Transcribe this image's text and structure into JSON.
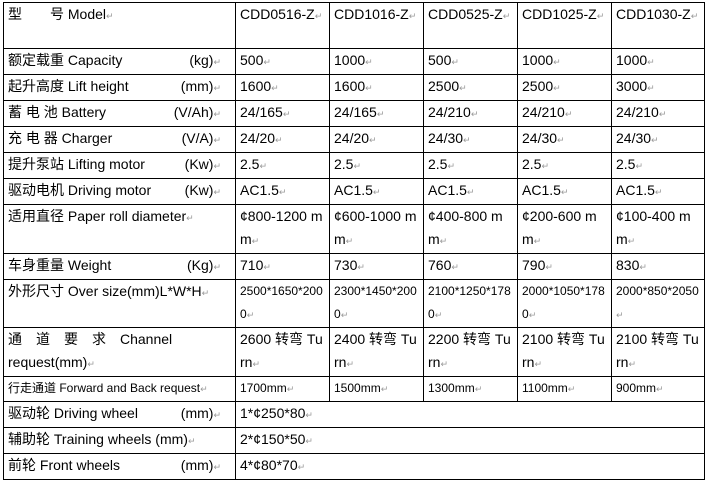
{
  "header": {
    "label": "型　　号 Model",
    "models": [
      "CDD0516-Z",
      "CDD1016-Z",
      "CDD0525-Z",
      "CDD1025-Z",
      "CDD1030-Z"
    ]
  },
  "rows": [
    {
      "name": "额定载重 Capacity",
      "unit": "(kg)",
      "values": [
        "500",
        "1000",
        "500",
        "1000",
        "1000"
      ]
    },
    {
      "name": "起升高度 Lift height",
      "unit": "(mm)",
      "values": [
        "1600",
        "1600",
        "2500",
        "2500",
        "3000"
      ]
    },
    {
      "name": "蓄 电 池 Battery",
      "unit": "(V/Ah)",
      "values": [
        "24/165",
        "24/165",
        "24/210",
        "24/210",
        "24/210"
      ]
    },
    {
      "name": "充 电 器 Charger",
      "unit": "(V/A)",
      "values": [
        "24/20",
        "24/20",
        "24/30",
        "24/30",
        "24/30"
      ]
    },
    {
      "name": "提升泵站 Lifting motor",
      "unit": "(Kw)",
      "values": [
        "2.5",
        "2.5",
        "2.5",
        "2.5",
        "2.5"
      ]
    },
    {
      "name": "驱动电机 Driving motor",
      "unit": "(Kw)",
      "values": [
        "AC1.5",
        "AC1.5",
        "AC1.5",
        "AC1.5",
        "AC1.5"
      ]
    },
    {
      "name": "适用直径 Paper roll diameter",
      "unit": "",
      "values": [
        "¢800-1200 mm",
        "¢600-1000 mm",
        "¢400-800 mm",
        "¢200-600 mm",
        "¢100-400 mm"
      ]
    },
    {
      "name": "车身重量 Weight",
      "unit": "(Kg)",
      "values": [
        "710",
        "730",
        "760",
        "790",
        "830"
      ]
    },
    {
      "name": "外形尺寸 Over size(mm)L*W*H",
      "unit": "",
      "values": [
        "2500*1650*2000",
        "2300*1450*2000",
        "2100*1250*1780",
        "2000*1050*1780",
        "2000*850*2050"
      ]
    },
    {
      "name": "通　道　要　求　Channel request(mm)",
      "unit": "",
      "values": [
        "2600 转弯 Turn",
        "2400 转弯 Turn",
        "2200 转弯 Turn",
        "2100 转弯 Turn",
        "2100 转弯 Turn"
      ]
    },
    {
      "name": "行走通道 Forward and Back request",
      "unit": "",
      "values": [
        "1700mm",
        "1500mm",
        "1300mm",
        "1100mm",
        "900mm"
      ]
    }
  ],
  "merged_rows": [
    {
      "name": "驱动轮  Driving wheel",
      "unit": "(mm)",
      "value": "1*¢250*80"
    },
    {
      "name": "辅助轮  Training wheels (mm)",
      "unit": "",
      "value": "2*¢150*50"
    },
    {
      "name": "前轮 Front wheels",
      "unit": "(mm)",
      "value": "4*¢80*70"
    }
  ]
}
